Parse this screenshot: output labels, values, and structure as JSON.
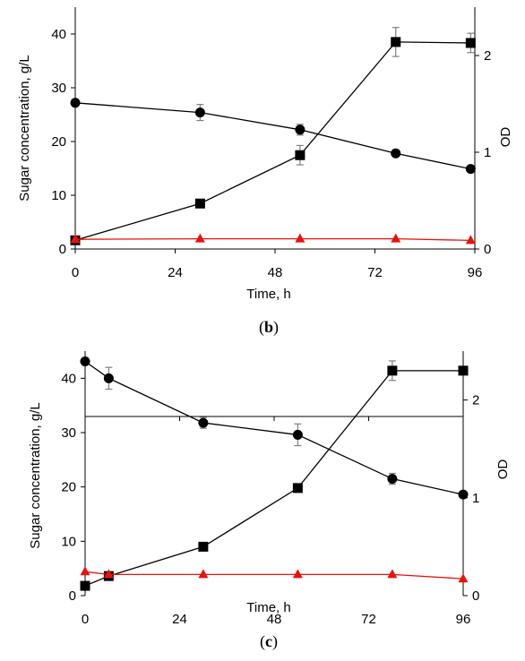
{
  "chart_data": [
    {
      "type": "line",
      "panel": "b",
      "caption_open": "(",
      "caption_letter": "b",
      "caption_close": ")",
      "xlabel": "Time, h",
      "ylabel": "Sugar concentration, g/L",
      "y2label": "OD",
      "xlim": [
        0,
        96
      ],
      "ylim": [
        0,
        45
      ],
      "y2lim": [
        0,
        2.5
      ],
      "xticks": [
        0,
        24,
        48,
        72,
        96
      ],
      "yticks": [
        0,
        10,
        20,
        30,
        40
      ],
      "y2ticks": [
        0,
        1,
        2
      ],
      "grid": false,
      "series": [
        {
          "marker": "circle",
          "color": "#000000",
          "axis": "left",
          "x": [
            0,
            30,
            54,
            77,
            95
          ],
          "y": [
            27.2,
            25.4,
            22.2,
            17.8,
            14.9
          ],
          "err": [
            0,
            1.5,
            1.0,
            0,
            0
          ]
        },
        {
          "marker": "square",
          "color": "#000000",
          "axis": "right",
          "x": [
            0,
            30,
            54,
            77,
            95
          ],
          "y": [
            0.09,
            0.47,
            0.97,
            2.14,
            2.13
          ],
          "err": [
            0,
            0,
            0.1,
            0.15,
            0.1
          ]
        },
        {
          "marker": "triangle",
          "color": "#e8130c",
          "axis": "left",
          "x": [
            0,
            30,
            54,
            77,
            95
          ],
          "y": [
            1.8,
            1.9,
            1.9,
            1.9,
            1.6
          ],
          "err": [
            0,
            0,
            0,
            0,
            0
          ]
        }
      ]
    },
    {
      "type": "line",
      "panel": "c",
      "caption_open": "(",
      "caption_letter": "c",
      "caption_close": ")",
      "xlabel": "Time, h",
      "ylabel": "Sugar concentration, g/L",
      "y2label": "OD",
      "xlim": [
        0,
        96
      ],
      "ylim": [
        0,
        45
      ],
      "y2lim": [
        0,
        2.5
      ],
      "xticks": [
        0,
        24,
        48,
        72,
        96
      ],
      "yticks": [
        0,
        10,
        20,
        30,
        40
      ],
      "y2ticks": [
        0,
        1,
        2
      ],
      "grid": false,
      "series": [
        {
          "marker": "circle",
          "color": "#000000",
          "axis": "left",
          "x": [
            0,
            6,
            30,
            54,
            78,
            96
          ],
          "y": [
            43.1,
            40.0,
            31.8,
            29.6,
            21.5,
            18.6
          ],
          "err": [
            0,
            2.0,
            1.0,
            2.0,
            1.0,
            0
          ]
        },
        {
          "marker": "square",
          "color": "#000000",
          "axis": "right",
          "x": [
            0,
            6,
            30,
            54,
            78,
            96
          ],
          "y": [
            0.1,
            0.2,
            0.5,
            1.1,
            2.3,
            2.3
          ],
          "err": [
            0,
            0,
            0,
            0,
            0.1,
            0
          ]
        },
        {
          "marker": "triangle",
          "color": "#e8130c",
          "axis": "left",
          "x": [
            0,
            6,
            30,
            54,
            78,
            96
          ],
          "y": [
            4.4,
            3.9,
            3.9,
            3.9,
            3.9,
            3.1
          ],
          "err": [
            0,
            0,
            0,
            0,
            0,
            0
          ]
        }
      ]
    }
  ]
}
